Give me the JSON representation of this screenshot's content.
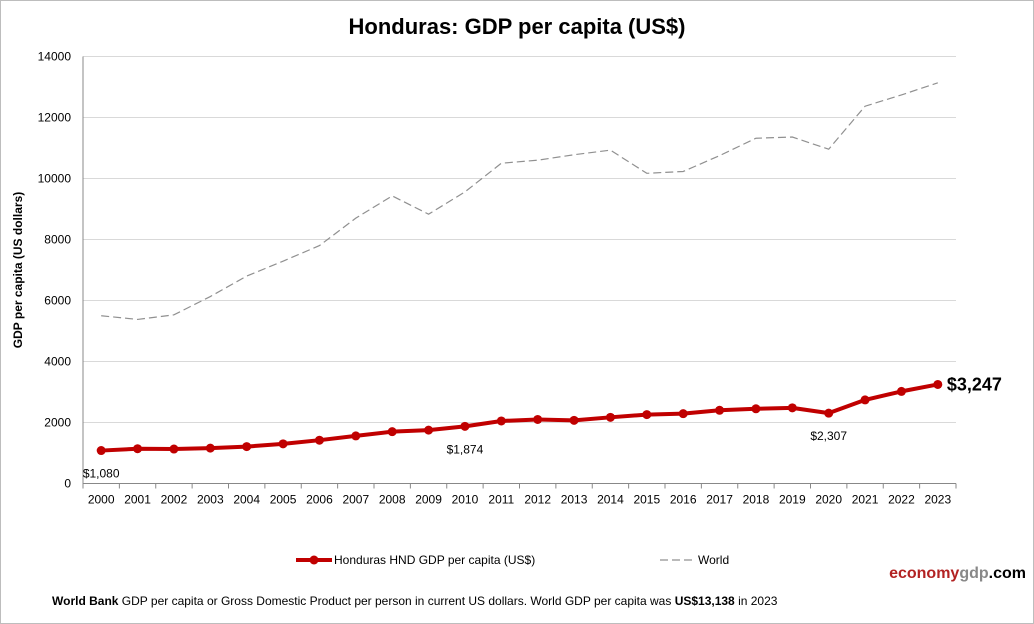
{
  "chart_data": {
    "type": "line",
    "title": "Honduras: GDP per capita (US$)",
    "ylabel": "GDP per capita (US dollars)",
    "xlabel": "",
    "ylim": [
      0,
      14000
    ],
    "yticks": [
      0,
      2000,
      4000,
      6000,
      8000,
      10000,
      12000,
      14000
    ],
    "grid": true,
    "legend_placement": "bottom",
    "categories": [
      "2000",
      "2001",
      "2002",
      "2003",
      "2004",
      "2005",
      "2006",
      "2007",
      "2008",
      "2009",
      "2010",
      "2011",
      "2012",
      "2013",
      "2014",
      "2015",
      "2016",
      "2017",
      "2018",
      "2019",
      "2020",
      "2021",
      "2022",
      "2023"
    ],
    "series": [
      {
        "name": "Honduras HND GDP per capita (US$)",
        "color": "#c00000",
        "style": "solid-markers",
        "values": [
          1080,
          1140,
          1130,
          1160,
          1210,
          1300,
          1420,
          1560,
          1700,
          1750,
          1874,
          2050,
          2100,
          2070,
          2170,
          2260,
          2290,
          2400,
          2450,
          2480,
          2307,
          2740,
          3020,
          3247
        ]
      },
      {
        "name": "World",
        "color": "#909090",
        "style": "dashed",
        "values": [
          5500,
          5380,
          5530,
          6130,
          6800,
          7290,
          7800,
          8700,
          9430,
          8830,
          9560,
          10500,
          10600,
          10780,
          10930,
          10170,
          10230,
          10750,
          11320,
          11360,
          10960,
          12370,
          12740,
          13138
        ]
      }
    ],
    "annotations": [
      {
        "index": 0,
        "label": "$1,080"
      },
      {
        "index": 10,
        "label": "$1,874"
      },
      {
        "index": 20,
        "label": "$2,307"
      },
      {
        "index": 23,
        "label": "$3,247"
      }
    ]
  },
  "brand": {
    "part1": "economy",
    "part2": "gdp",
    "part3": ".com"
  },
  "footer": {
    "source": "World Bank",
    "text1": " GDP per capita or Gross Domestic Product per person  in current US dollars.   World GDP per capita was ",
    "value": "US$13,138",
    "text2": "  in 2023"
  }
}
